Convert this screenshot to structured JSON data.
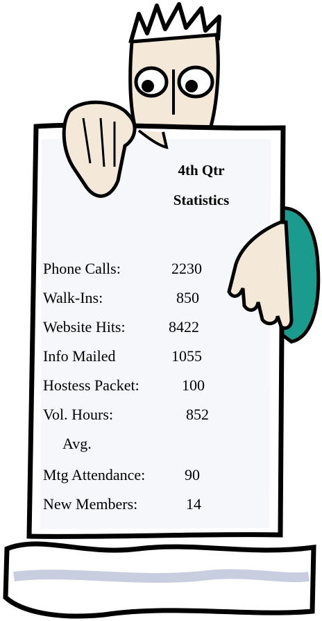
{
  "header": {
    "title_line1": "4th  Qtr",
    "title_line2": "Statistics"
  },
  "rows": [
    {
      "label": "Phone Calls:",
      "value": 2230
    },
    {
      "label": "Walk-Ins:",
      "value": 850
    },
    {
      "label": "Website Hits:",
      "value": 8422
    },
    {
      "label": "Info Mailed",
      "value": 1055
    },
    {
      "label": "Hostess Packet:",
      "value": 100
    },
    {
      "label": "Vol. Hours:",
      "value": 852,
      "note": "Avg."
    },
    {
      "label": "Mtg Attendance:",
      "value": 90
    },
    {
      "label": "New Members:",
      "value": 14
    }
  ]
}
